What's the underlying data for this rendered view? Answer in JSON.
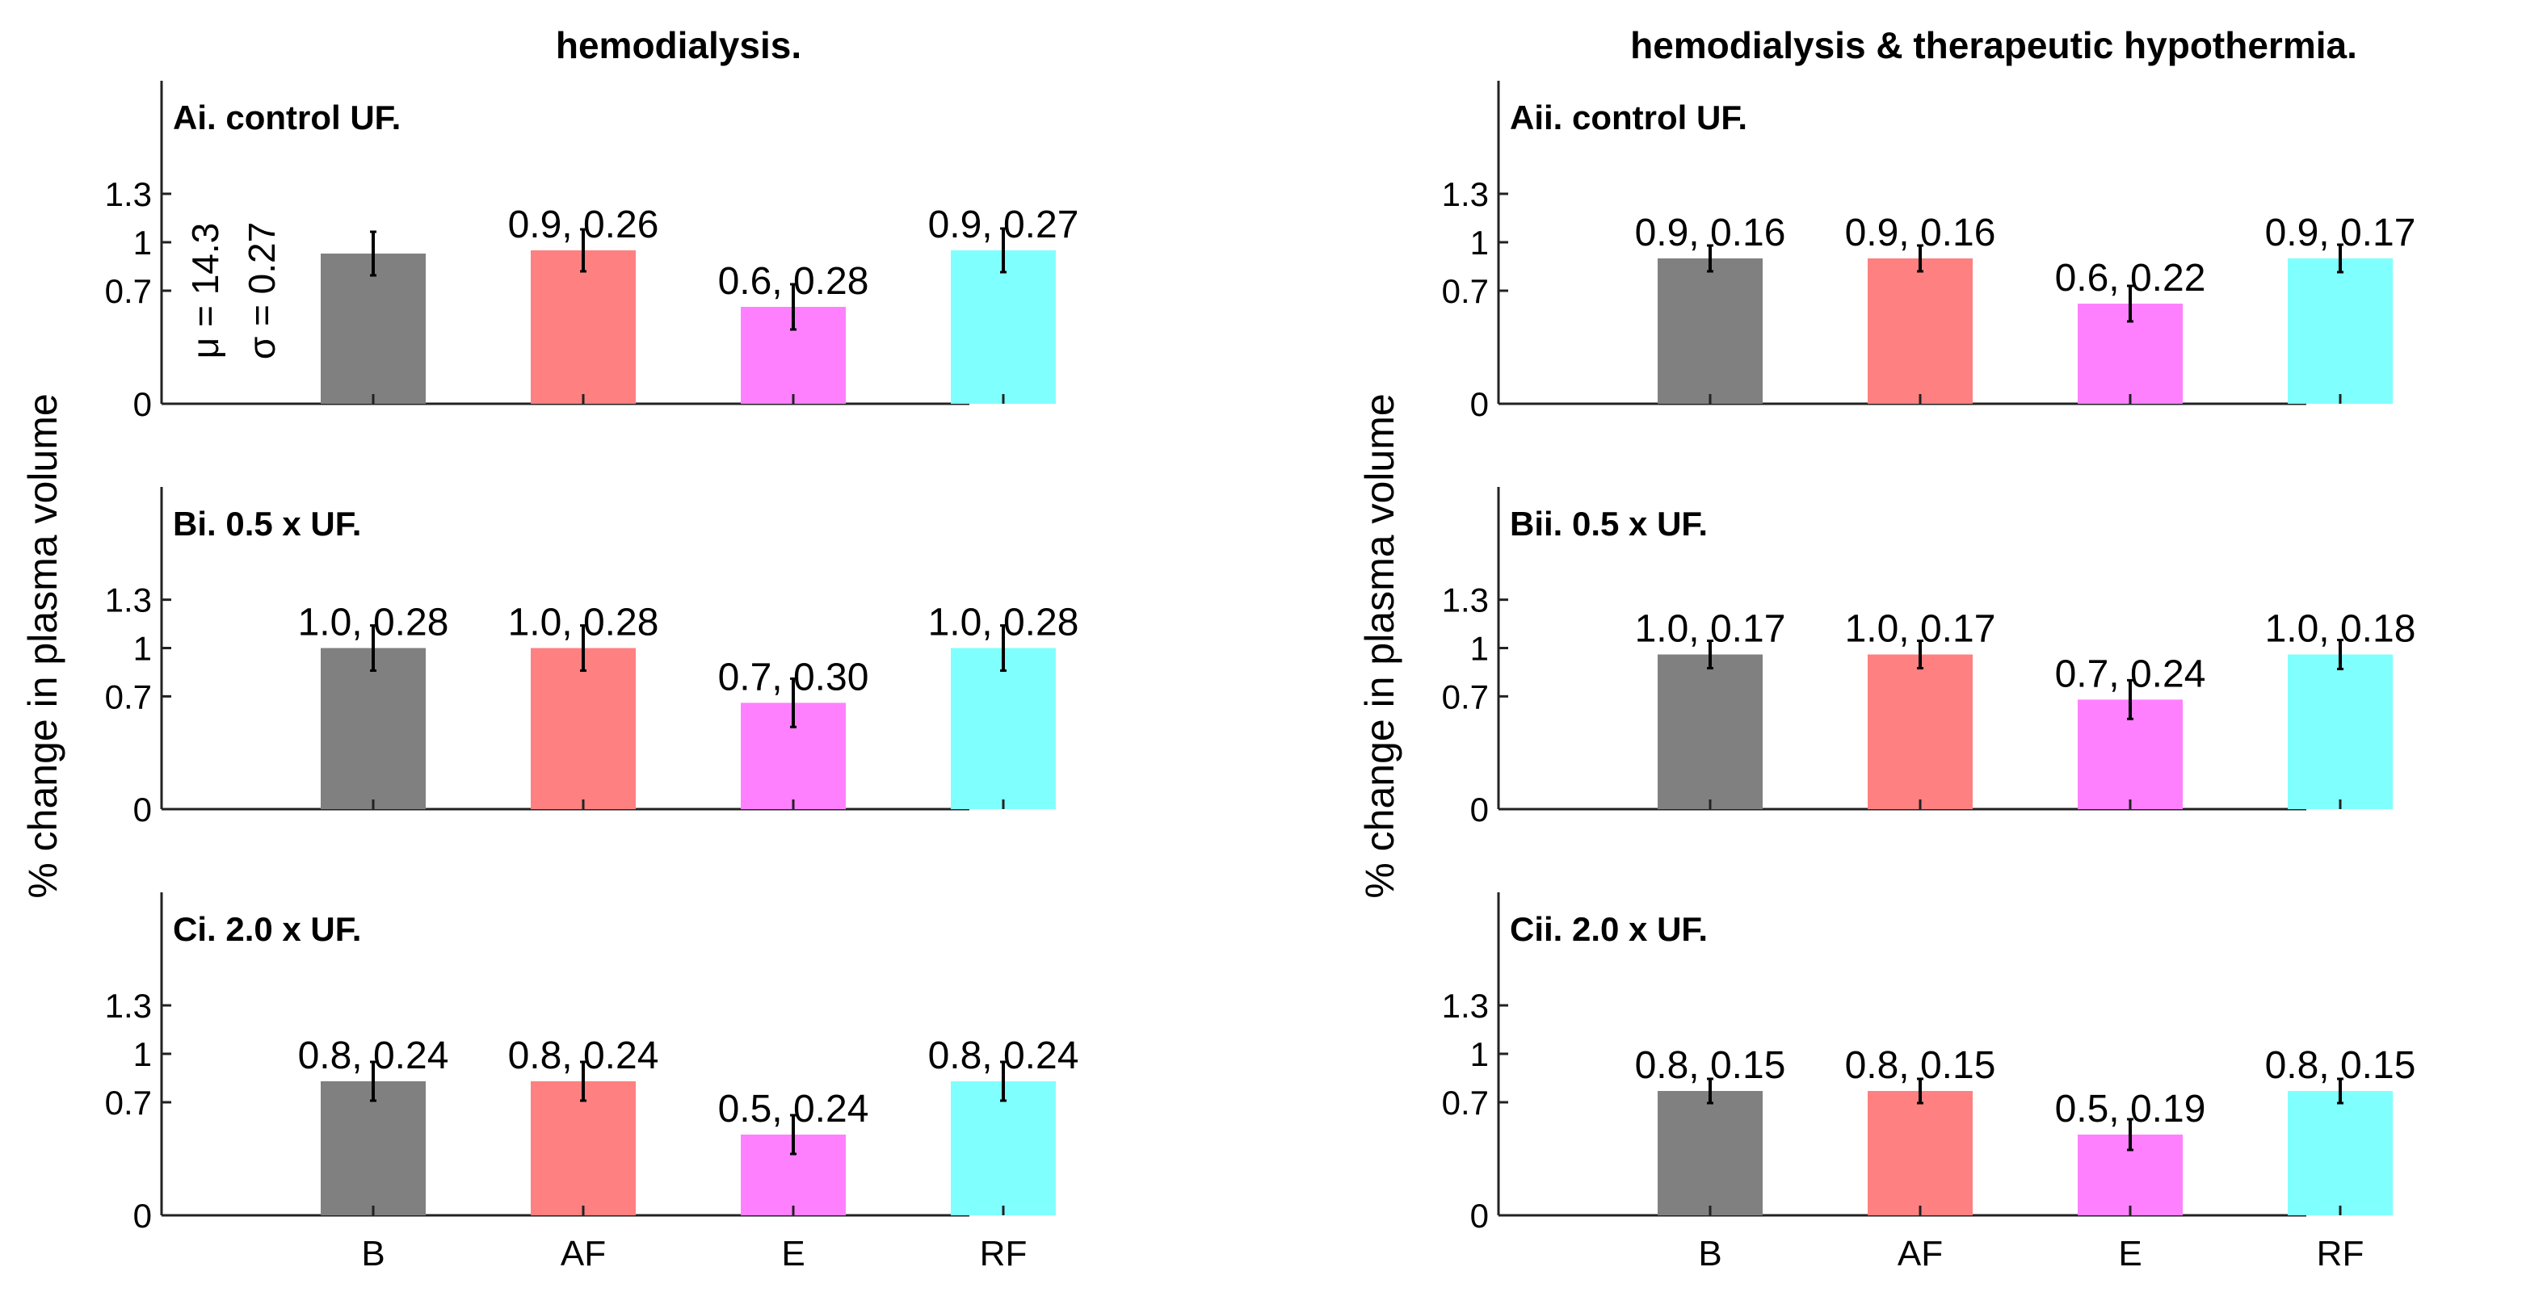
{
  "chart_data": {
    "type": "bar",
    "ylabel": "% change in plasma volume",
    "ylim": [
      0,
      2
    ],
    "yticks": [
      "0",
      "0.7",
      "1",
      "1.3"
    ],
    "categories": [
      "B",
      "AF",
      "E",
      "RF"
    ],
    "colors": [
      "#808080",
      "#ff8080",
      "#ff80ff",
      "#80ffff"
    ],
    "columns": [
      {
        "title": "hemodialysis.",
        "stats": {
          "mu": "μ = 14.3",
          "sigma": "σ = 0.27"
        },
        "panels": [
          {
            "title": "Ai. control UF.",
            "values": [
              0.93,
              0.95,
              0.6,
              0.95
            ],
            "errors": [
              0.27,
              0.26,
              0.28,
              0.27
            ],
            "labels": [
              "",
              "0.9, 0.26",
              "0.6, 0.28",
              "0.9, 0.27"
            ]
          },
          {
            "title": "Bi. 0.5 x UF.",
            "values": [
              1.0,
              1.0,
              0.66,
              1.0
            ],
            "errors": [
              0.28,
              0.28,
              0.3,
              0.28
            ],
            "labels": [
              "1.0, 0.28",
              "1.0, 0.28",
              "0.7, 0.30",
              "1.0, 0.28"
            ]
          },
          {
            "title": "Ci. 2.0 x UF.",
            "values": [
              0.83,
              0.83,
              0.5,
              0.83
            ],
            "errors": [
              0.24,
              0.24,
              0.24,
              0.24
            ],
            "labels": [
              "0.8, 0.24",
              "0.8, 0.24",
              "0.5, 0.24",
              "0.8, 0.24"
            ]
          }
        ]
      },
      {
        "title": "hemodialysis & therapeutic hypothermia.",
        "panels": [
          {
            "title": "Aii. control UF.",
            "values": [
              0.9,
              0.9,
              0.62,
              0.9
            ],
            "errors": [
              0.16,
              0.16,
              0.22,
              0.17
            ],
            "labels": [
              "0.9, 0.16",
              "0.9, 0.16",
              "0.6, 0.22",
              "0.9, 0.17"
            ]
          },
          {
            "title": "Bii. 0.5 x UF.",
            "values": [
              0.96,
              0.96,
              0.68,
              0.96
            ],
            "errors": [
              0.17,
              0.17,
              0.24,
              0.18
            ],
            "labels": [
              "1.0, 0.17",
              "1.0, 0.17",
              "0.7, 0.24",
              "1.0, 0.18"
            ]
          },
          {
            "title": "Cii. 2.0 x UF.",
            "values": [
              0.77,
              0.77,
              0.5,
              0.77
            ],
            "errors": [
              0.15,
              0.15,
              0.19,
              0.15
            ],
            "labels": [
              "0.8, 0.15",
              "0.8, 0.15",
              "0.5, 0.19",
              "0.8, 0.15"
            ]
          }
        ]
      }
    ]
  }
}
